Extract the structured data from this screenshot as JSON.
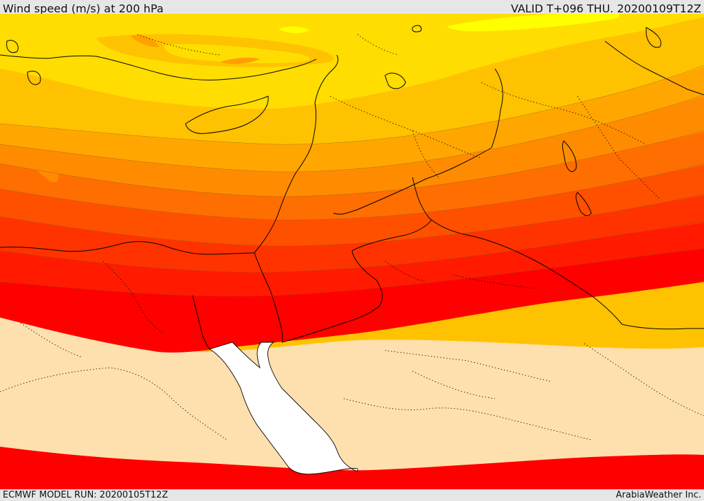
{
  "header": {
    "title": "Wind speed (m/s) at 200 hPa",
    "valid_time": "VALID T+096 THU. 20200109T12Z"
  },
  "footer": {
    "model_run": "ECMWF MODEL RUN: 20200105T12Z",
    "credit": "ArabiaWeather Inc."
  },
  "map": {
    "field": "wind speed",
    "level_hpa": 200,
    "colors": {
      "calm_land": "#fde0ad",
      "sea_white": "#ffffff",
      "band_yellow_light": "#ffff00",
      "band_yellow": "#ffdd00",
      "band_gold": "#ffc200",
      "band_orange_light": "#ffa700",
      "band_orange": "#ff8c00",
      "band_orange_dark": "#ff6e00",
      "band_red_orange": "#ff5000",
      "band_red_light": "#ff3300",
      "band_red": "#ff1a00",
      "band_red_core": "#ff0000",
      "band_south_jet": "#ff0000",
      "coastline": "#000000",
      "borders": "#000000"
    }
  }
}
